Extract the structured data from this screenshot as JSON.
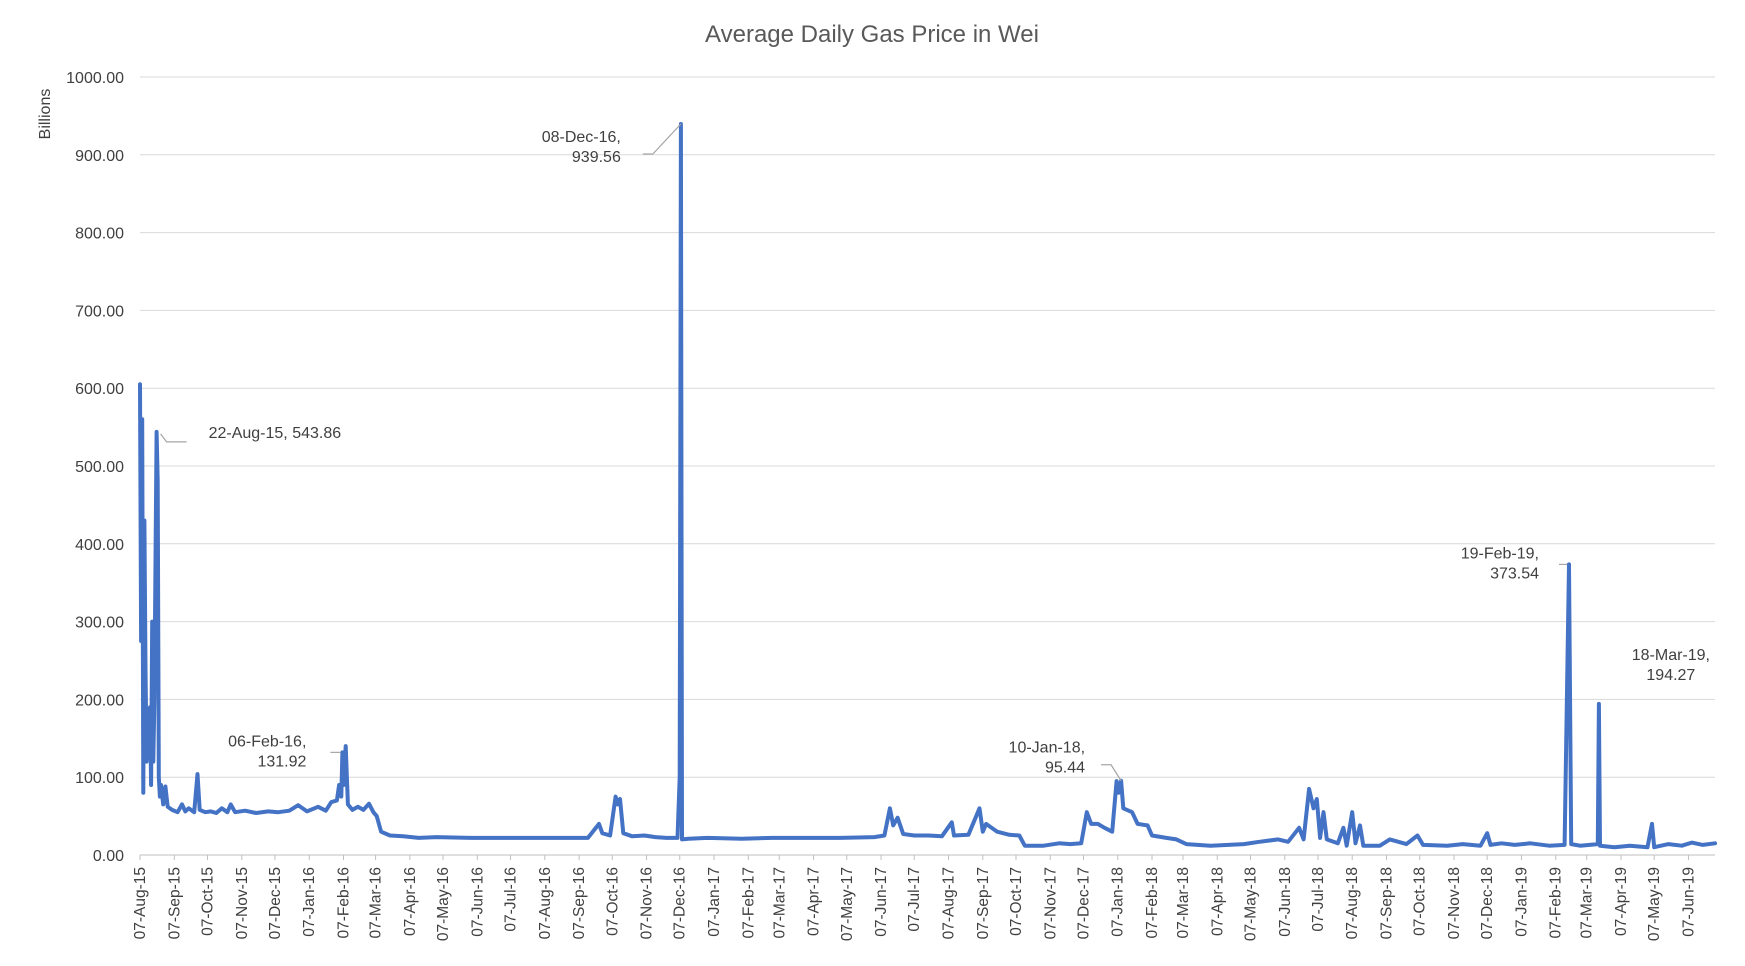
{
  "chart_data": {
    "type": "line",
    "title": "Average Daily Gas Price in Wei",
    "xlabel": "",
    "ylabel": "Billions",
    "ylim": [
      0,
      1000
    ],
    "y_ticks": [
      "0.00",
      "100.00",
      "200.00",
      "300.00",
      "400.00",
      "500.00",
      "600.00",
      "700.00",
      "800.00",
      "900.00",
      "1000.00"
    ],
    "x_ticks": [
      "07-Aug-15",
      "07-Sep-15",
      "07-Oct-15",
      "07-Nov-15",
      "07-Dec-15",
      "07-Jan-16",
      "07-Feb-16",
      "07-Mar-16",
      "07-Apr-16",
      "07-May-16",
      "07-Jun-16",
      "07-Jul-16",
      "07-Aug-16",
      "07-Sep-16",
      "07-Oct-16",
      "07-Nov-16",
      "07-Dec-16",
      "07-Jan-17",
      "07-Feb-17",
      "07-Mar-17",
      "07-Apr-17",
      "07-May-17",
      "07-Jun-17",
      "07-Jul-17",
      "07-Aug-17",
      "07-Sep-17",
      "07-Oct-17",
      "07-Nov-17",
      "07-Dec-17",
      "07-Jan-18",
      "07-Feb-18",
      "07-Mar-18",
      "07-Apr-18",
      "07-May-18",
      "07-Jun-18",
      "07-Jul-18",
      "07-Aug-18",
      "07-Sep-18",
      "07-Oct-18",
      "07-Nov-18",
      "07-Dec-18",
      "07-Jan-19",
      "07-Feb-19",
      "07-Mar-19",
      "07-Apr-19",
      "07-May-19",
      "07-Jun-19"
    ],
    "grid": true,
    "legend": "none",
    "series_color": "#4472C4",
    "series": [
      {
        "points": [
          [
            "2015-08-07",
            605
          ],
          [
            "2015-08-08",
            275
          ],
          [
            "2015-08-09",
            560
          ],
          [
            "2015-08-10",
            80
          ],
          [
            "2015-08-11",
            430
          ],
          [
            "2015-08-12",
            240
          ],
          [
            "2015-08-13",
            120
          ],
          [
            "2015-08-14",
            180
          ],
          [
            "2015-08-15",
            125
          ],
          [
            "2015-08-16",
            190
          ],
          [
            "2015-08-17",
            90
          ],
          [
            "2015-08-18",
            300
          ],
          [
            "2015-08-19",
            120
          ],
          [
            "2015-08-20",
            200
          ],
          [
            "2015-08-21",
            380
          ],
          [
            "2015-08-22",
            543.86
          ],
          [
            "2015-08-23",
            480
          ],
          [
            "2015-08-24",
            100
          ],
          [
            "2015-08-25",
            75
          ],
          [
            "2015-08-26",
            90
          ],
          [
            "2015-08-28",
            65
          ],
          [
            "2015-08-30",
            88
          ],
          [
            "2015-09-01",
            62
          ],
          [
            "2015-09-05",
            58
          ],
          [
            "2015-09-10",
            55
          ],
          [
            "2015-09-14",
            65
          ],
          [
            "2015-09-17",
            56
          ],
          [
            "2015-09-20",
            60
          ],
          [
            "2015-09-25",
            55
          ],
          [
            "2015-09-28",
            104
          ],
          [
            "2015-09-30",
            58
          ],
          [
            "2015-10-05",
            55
          ],
          [
            "2015-10-10",
            56
          ],
          [
            "2015-10-15",
            54
          ],
          [
            "2015-10-20",
            60
          ],
          [
            "2015-10-25",
            55
          ],
          [
            "2015-10-28",
            65
          ],
          [
            "2015-11-01",
            55
          ],
          [
            "2015-11-10",
            57
          ],
          [
            "2015-11-20",
            54
          ],
          [
            "2015-12-01",
            56
          ],
          [
            "2015-12-10",
            55
          ],
          [
            "2015-12-20",
            57
          ],
          [
            "2015-12-28",
            64
          ],
          [
            "2016-01-05",
            56
          ],
          [
            "2016-01-15",
            62
          ],
          [
            "2016-01-22",
            57
          ],
          [
            "2016-01-27",
            68
          ],
          [
            "2016-02-01",
            70
          ],
          [
            "2016-02-03",
            90
          ],
          [
            "2016-02-05",
            75
          ],
          [
            "2016-02-06",
            131.92
          ],
          [
            "2016-02-07",
            90
          ],
          [
            "2016-02-09",
            140
          ],
          [
            "2016-02-11",
            65
          ],
          [
            "2016-02-15",
            58
          ],
          [
            "2016-02-20",
            62
          ],
          [
            "2016-02-25",
            58
          ],
          [
            "2016-03-01",
            66
          ],
          [
            "2016-03-05",
            55
          ],
          [
            "2016-03-08",
            50
          ],
          [
            "2016-03-12",
            30
          ],
          [
            "2016-03-20",
            25
          ],
          [
            "2016-04-01",
            24
          ],
          [
            "2016-04-15",
            22
          ],
          [
            "2016-05-01",
            23
          ],
          [
            "2016-06-01",
            22
          ],
          [
            "2016-07-01",
            22
          ],
          [
            "2016-08-01",
            22
          ],
          [
            "2016-09-01",
            22
          ],
          [
            "2016-09-15",
            22
          ],
          [
            "2016-09-25",
            40
          ],
          [
            "2016-09-28",
            28
          ],
          [
            "2016-10-05",
            25
          ],
          [
            "2016-10-10",
            75
          ],
          [
            "2016-10-12",
            65
          ],
          [
            "2016-10-14",
            72
          ],
          [
            "2016-10-17",
            28
          ],
          [
            "2016-10-25",
            24
          ],
          [
            "2016-11-05",
            25
          ],
          [
            "2016-11-15",
            23
          ],
          [
            "2016-11-25",
            22
          ],
          [
            "2016-12-05",
            22
          ],
          [
            "2016-12-07",
            100
          ],
          [
            "2016-12-08",
            939.56
          ],
          [
            "2016-12-09",
            20
          ],
          [
            "2016-12-15",
            21
          ],
          [
            "2017-01-01",
            22
          ],
          [
            "2017-02-01",
            21
          ],
          [
            "2017-03-01",
            22
          ],
          [
            "2017-04-01",
            22
          ],
          [
            "2017-05-01",
            22
          ],
          [
            "2017-06-01",
            23
          ],
          [
            "2017-06-10",
            25
          ],
          [
            "2017-06-15",
            60
          ],
          [
            "2017-06-18",
            38
          ],
          [
            "2017-06-22",
            48
          ],
          [
            "2017-06-27",
            27
          ],
          [
            "2017-07-07",
            25
          ],
          [
            "2017-07-20",
            25
          ],
          [
            "2017-08-01",
            24
          ],
          [
            "2017-08-10",
            42
          ],
          [
            "2017-08-12",
            25
          ],
          [
            "2017-08-25",
            26
          ],
          [
            "2017-09-04",
            60
          ],
          [
            "2017-09-07",
            30
          ],
          [
            "2017-09-10",
            40
          ],
          [
            "2017-09-20",
            30
          ],
          [
            "2017-10-01",
            26
          ],
          [
            "2017-10-10",
            25
          ],
          [
            "2017-10-15",
            12
          ],
          [
            "2017-11-01",
            12
          ],
          [
            "2017-11-15",
            15
          ],
          [
            "2017-11-25",
            14
          ],
          [
            "2017-12-05",
            15
          ],
          [
            "2017-12-10",
            55
          ],
          [
            "2017-12-14",
            40
          ],
          [
            "2017-12-20",
            40
          ],
          [
            "2017-12-26",
            35
          ],
          [
            "2018-01-02",
            30
          ],
          [
            "2018-01-06",
            95
          ],
          [
            "2018-01-08",
            80
          ],
          [
            "2018-01-10",
            95.44
          ],
          [
            "2018-01-12",
            60
          ],
          [
            "2018-01-20",
            55
          ],
          [
            "2018-01-25",
            40
          ],
          [
            "2018-02-03",
            38
          ],
          [
            "2018-02-07",
            25
          ],
          [
            "2018-02-20",
            22
          ],
          [
            "2018-03-01",
            20
          ],
          [
            "2018-03-10",
            14
          ],
          [
            "2018-04-01",
            12
          ],
          [
            "2018-05-01",
            14
          ],
          [
            "2018-05-15",
            17
          ],
          [
            "2018-06-01",
            20
          ],
          [
            "2018-06-10",
            17
          ],
          [
            "2018-06-20",
            35
          ],
          [
            "2018-06-24",
            20
          ],
          [
            "2018-06-29",
            85
          ],
          [
            "2018-07-03",
            60
          ],
          [
            "2018-07-06",
            72
          ],
          [
            "2018-07-09",
            22
          ],
          [
            "2018-07-12",
            55
          ],
          [
            "2018-07-15",
            20
          ],
          [
            "2018-07-25",
            15
          ],
          [
            "2018-07-30",
            35
          ],
          [
            "2018-08-02",
            12
          ],
          [
            "2018-08-07",
            55
          ],
          [
            "2018-08-10",
            15
          ],
          [
            "2018-08-14",
            38
          ],
          [
            "2018-08-17",
            12
          ],
          [
            "2018-09-01",
            12
          ],
          [
            "2018-09-10",
            20
          ],
          [
            "2018-09-25",
            14
          ],
          [
            "2018-10-05",
            25
          ],
          [
            "2018-10-10",
            13
          ],
          [
            "2018-11-01",
            12
          ],
          [
            "2018-11-15",
            14
          ],
          [
            "2018-12-01",
            12
          ],
          [
            "2018-12-07",
            28
          ],
          [
            "2018-12-10",
            13
          ],
          [
            "2018-12-20",
            15
          ],
          [
            "2019-01-01",
            13
          ],
          [
            "2019-01-15",
            15
          ],
          [
            "2019-02-01",
            12
          ],
          [
            "2019-02-15",
            13
          ],
          [
            "2019-02-19",
            373.54
          ],
          [
            "2019-02-21",
            14
          ],
          [
            "2019-03-01",
            12
          ],
          [
            "2019-03-17",
            14
          ],
          [
            "2019-03-18",
            194.27
          ],
          [
            "2019-03-19",
            12
          ],
          [
            "2019-04-01",
            10
          ],
          [
            "2019-04-15",
            12
          ],
          [
            "2019-05-01",
            10
          ],
          [
            "2019-05-05",
            40
          ],
          [
            "2019-05-07",
            10
          ],
          [
            "2019-05-20",
            14
          ],
          [
            "2019-06-01",
            12
          ],
          [
            "2019-06-10",
            16
          ],
          [
            "2019-06-20",
            13
          ],
          [
            "2019-07-01",
            15
          ]
        ]
      }
    ],
    "annotations": [
      {
        "date": "2015-08-22",
        "value": 543.86,
        "lines": [
          "22-Aug-15, 543.86"
        ]
      },
      {
        "date": "2016-02-06",
        "value": 131.92,
        "lines": [
          "06-Feb-16,",
          "131.92"
        ]
      },
      {
        "date": "2016-12-08",
        "value": 939.56,
        "lines": [
          "08-Dec-16,",
          "939.56"
        ]
      },
      {
        "date": "2018-01-10",
        "value": 95.44,
        "lines": [
          "10-Jan-18,",
          "95.44"
        ]
      },
      {
        "date": "2019-02-19",
        "value": 373.54,
        "lines": [
          "19-Feb-19,",
          "373.54"
        ]
      },
      {
        "date": "2019-03-18",
        "value": 194.27,
        "lines": [
          "18-Mar-19,",
          "194.27"
        ]
      }
    ]
  }
}
